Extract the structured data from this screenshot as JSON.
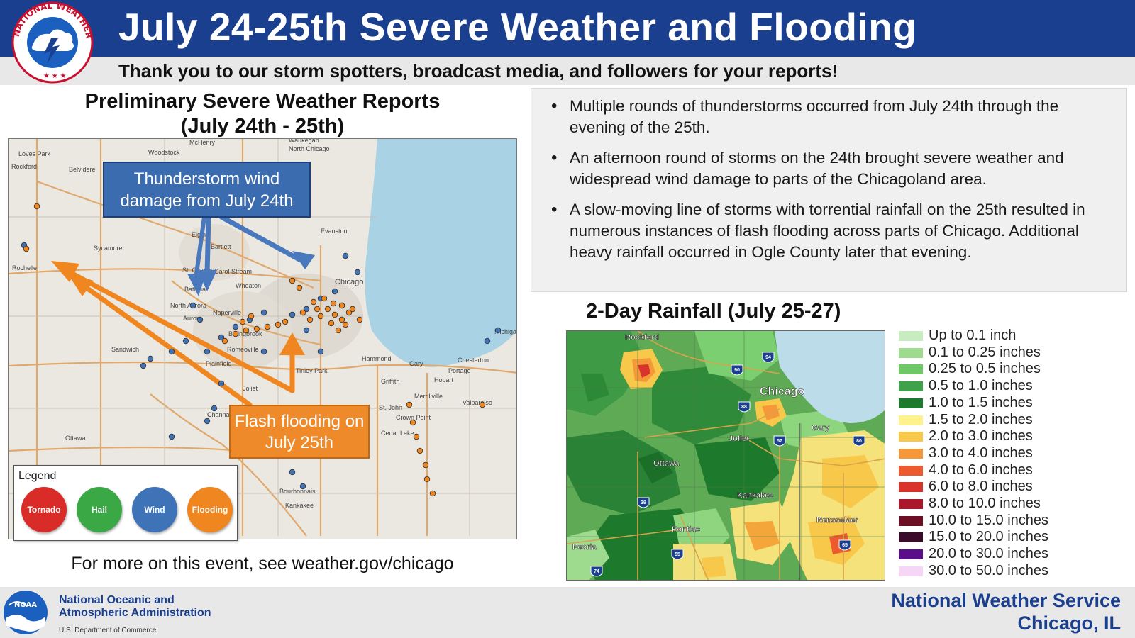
{
  "header": {
    "title": "July 24-25th Severe Weather and Flooding",
    "subtitle": "Thank you to our storm spotters, broadcast media, and followers for your reports!",
    "logo_text": "NATIONAL WEATHER SERVICE"
  },
  "left_panel": {
    "title_line1": "Preliminary Severe Weather Reports",
    "title_line2": "(July 24th - 25th)",
    "callout_wind": "Thunderstorm wind damage from July 24th",
    "callout_flood": "Flash flooding on July 25th",
    "map_labels": [
      "Loves Park",
      "Rockford",
      "Belvidere",
      "Woodstock",
      "McHenry",
      "Waukegan",
      "North Chicago",
      "Elgin",
      "Bartlett",
      "Evanston",
      "Sycamore",
      "Rochelle",
      "St. Charles",
      "Carol Stream",
      "Batavia",
      "Wheaton",
      "North Aurora",
      "Aurora",
      "Naperville",
      "Bolingbrook",
      "Romeoville",
      "Sandwich",
      "Plainfield",
      "Joliet",
      "Channahon",
      "Ottawa",
      "Tinley Park",
      "Hammond",
      "Gary",
      "Chesterton",
      "Portage",
      "Griffith",
      "Merrillville",
      "Hobart",
      "Valparaiso",
      "St. John",
      "Crown Point",
      "Cedar Lake",
      "Bourbonnais",
      "Kankakee",
      "Chicago",
      "Michigan City"
    ],
    "footer_link": "For more on this event, see weather.gov/chicago"
  },
  "legend": {
    "title": "Legend",
    "items": [
      {
        "label": "Tornado",
        "color": "#d92b27"
      },
      {
        "label": "Hail",
        "color": "#3aa845"
      },
      {
        "label": "Wind",
        "color": "#3e73b8"
      },
      {
        "label": "Flooding",
        "color": "#f0861f"
      }
    ]
  },
  "bullets": [
    "Multiple rounds of thunderstorms occurred from July 24th through the evening of the 25th.",
    "An afternoon round of storms on the 24th brought severe weather and widespread wind damage to parts of the Chicagoland area.",
    "A slow-moving line of storms with torrential rainfall on the 25th resulted in numerous instances of flash flooding across parts of Chicago. Additional heavy rainfall occurred in Ogle County later that evening."
  ],
  "rainfall": {
    "title": "2-Day Rainfall (July 25-27)",
    "map_labels": [
      "Rockford",
      "Chicago",
      "Gary",
      "Joliet",
      "Ottawa",
      "Kankakee",
      "Rensselaer",
      "Pontiac",
      "Peoria"
    ],
    "highway_labels": [
      "94",
      "90",
      "88",
      "57",
      "80",
      "39",
      "55",
      "65",
      "74"
    ],
    "legend": [
      {
        "label": "Up to 0.1 inch",
        "color": "#c7ecc0"
      },
      {
        "label": "0.1 to 0.25 inches",
        "color": "#9edb8e"
      },
      {
        "label": "0.25 to 0.5 inches",
        "color": "#6fc866"
      },
      {
        "label": "0.5 to 1.0 inches",
        "color": "#3fa24a"
      },
      {
        "label": "1.0 to 1.5 inches",
        "color": "#1d7a2c"
      },
      {
        "label": "1.5 to 2.0 inches",
        "color": "#fdf28e"
      },
      {
        "label": "2.0 to 3.0 inches",
        "color": "#f8c84a"
      },
      {
        "label": "3.0 to 4.0 inches",
        "color": "#f4983a"
      },
      {
        "label": "4.0 to 6.0 inches",
        "color": "#ec5a2e"
      },
      {
        "label": "6.0 to 8.0 inches",
        "color": "#d8342b"
      },
      {
        "label": "8.0 to 10.0 inches",
        "color": "#a8182a"
      },
      {
        "label": "10.0 to 15.0 inches",
        "color": "#6d0e24"
      },
      {
        "label": "15.0 to 20.0 inches",
        "color": "#3a0a2a"
      },
      {
        "label": "20.0 to 30.0 inches",
        "color": "#5a0e8a"
      },
      {
        "label": "30.0 to 50.0 inches",
        "color": "#f6d6f6"
      }
    ]
  },
  "footer": {
    "noaa_logo_text": "NOAA",
    "noaa_line1": "National Oceanic and",
    "noaa_line2": "Atmospheric Administration",
    "noaa_line3": "U.S. Department of Commerce",
    "nws_line1": "National Weather Service",
    "nws_line2": "Chicago, IL"
  }
}
